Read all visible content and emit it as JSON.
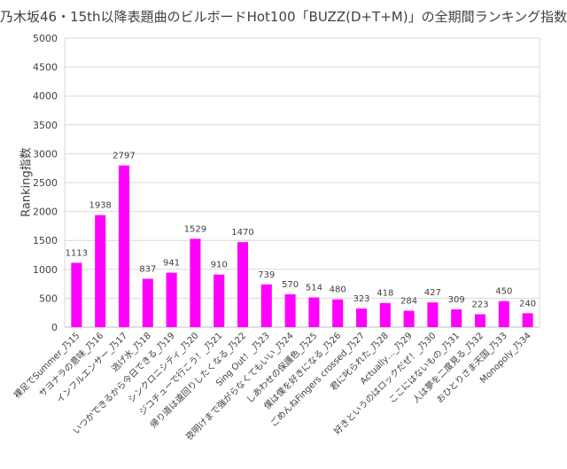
{
  "chart_data": {
    "type": "bar",
    "title": "乃木坂46・15th以降表題曲のビルボードHot100「BUZZ(D+T+M)」の全期間ランキング指数",
    "xlabel": "",
    "ylabel": "Ranking指数",
    "ylim": [
      0,
      5000
    ],
    "yticks": [
      0,
      500,
      1000,
      1500,
      2000,
      2500,
      3000,
      3500,
      4000,
      4500,
      5000
    ],
    "grid": true,
    "legend": "none",
    "bar_color": "#ff00ff",
    "categories": [
      "裸足でSummer_乃15",
      "サヨナラの意味_乃16",
      "インフルエンサー_乃17",
      "逃げ水_乃18",
      "いつかできるから今日できる_乃19",
      "シンクロニシティ_乃20",
      "ジコチューで行こう！_乃21",
      "帰り道は遠回りしたくなる_乃22",
      "Sing Out！_乃23",
      "夜明けまで強がらなくてもいい_乃24",
      "しあわせの保護色_乃25",
      "僕は僕を好きになる_乃26",
      "ごめんねFingers crossed_乃27",
      "君に叱られた_乃28",
      "Actually…_乃29",
      "好きというのはロックだぜ！_乃30",
      "ここにはないもの_乃31",
      "人は夢を二度見る_乃32",
      "おひとりさま天国_乃33",
      "Monopoly_乃34"
    ],
    "values": [
      1113,
      1938,
      2797,
      837,
      941,
      1529,
      910,
      1470,
      739,
      570,
      514,
      480,
      323,
      418,
      284,
      427,
      309,
      223,
      450,
      240
    ]
  }
}
